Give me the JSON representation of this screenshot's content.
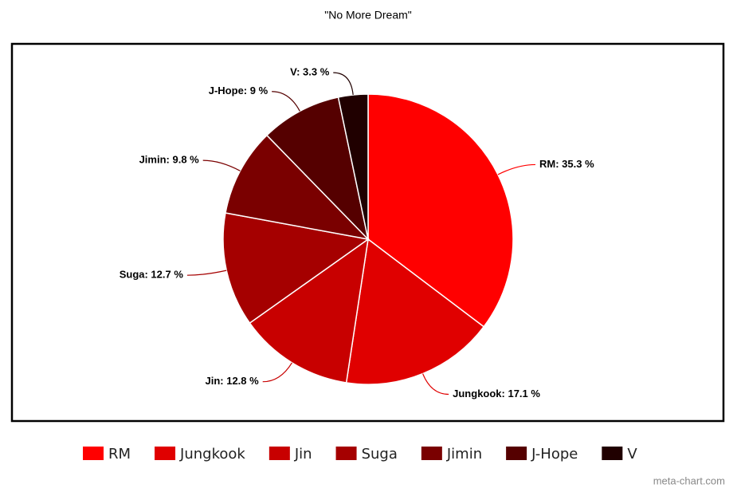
{
  "chart_data": {
    "type": "pie",
    "title": "\"No More Dream\"",
    "categories": [
      "RM",
      "Jungkook",
      "Jin",
      "Suga",
      "Jimin",
      "J-Hope",
      "V"
    ],
    "values": [
      35.3,
      17.1,
      12.8,
      12.7,
      9.8,
      9,
      3.3
    ],
    "value_labels": [
      "RM: 35.3 %",
      "Jungkook: 17.1 %",
      "Jin: 12.8 %",
      "Suga: 12.7 %",
      "Jimin: 9.8 %",
      "J-Hope: 9 %",
      "V: 3.3 %"
    ],
    "colors": [
      "#ff0000",
      "#e00000",
      "#c80000",
      "#a50000",
      "#7a0000",
      "#550000",
      "#200000"
    ],
    "watermark": "meta-chart.com"
  }
}
